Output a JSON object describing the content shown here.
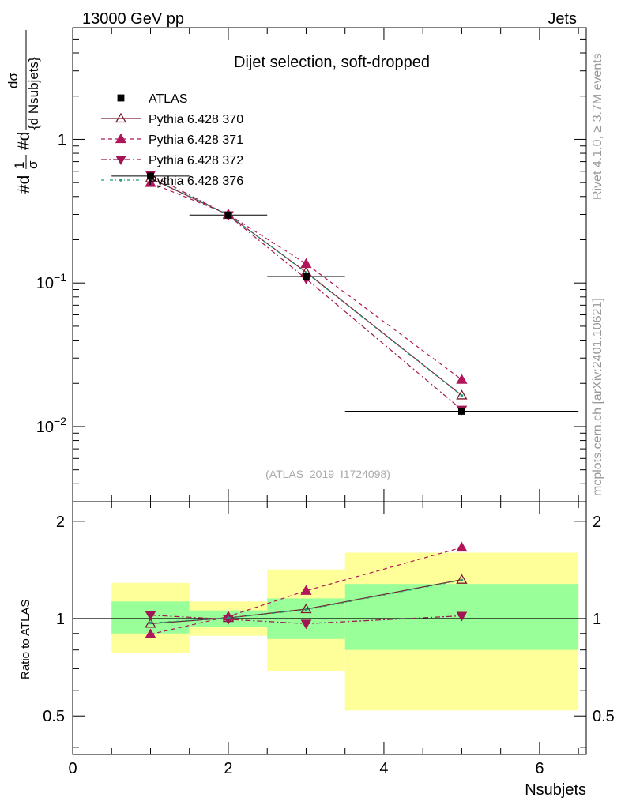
{
  "header": {
    "left": "13000 GeV pp",
    "right": "Jets"
  },
  "side_labels": {
    "rivet": "Rivet 4.1.0, ≥ 3.7M events",
    "mcplots": "mcplots.cern.ch [arXiv:2401.10621]"
  },
  "chart_data": [
    {
      "type": "line",
      "title": "Dijet selection, soft-dropped",
      "watermark": "(ATLAS_2019_I1724098)",
      "xlabel": "Nsubjets",
      "ylabel_parts": {
        "numerator_left": "#d",
        "sigma_bar": "1",
        "sigma": "σ",
        "d_label": "#d",
        "d_sigma": "dσ",
        "d_nsubjets": "{d Nsubjets}"
      },
      "xlim": [
        0,
        6.6
      ],
      "ylim": [
        0.003,
        6
      ],
      "yscale": "log",
      "y_ticks": [
        {
          "value": 1,
          "base": "1",
          "exp": ""
        },
        {
          "value": 0.1,
          "base": "10",
          "exp": "−1"
        },
        {
          "value": 0.01,
          "base": "10",
          "exp": "−2"
        }
      ],
      "x": [
        1,
        2,
        3,
        5
      ],
      "data": {
        "name": "ATLAS",
        "color": "#000000",
        "values": [
          0.555,
          0.297,
          0.111,
          0.0128
        ],
        "x_edges": [
          [
            0.5,
            1.5
          ],
          [
            1.5,
            2.5
          ],
          [
            2.5,
            3.5
          ],
          [
            3.5,
            6.5
          ]
        ]
      },
      "series": [
        {
          "name": "Pythia 6.428 370",
          "color": "#7b1c2e",
          "dash": "",
          "marker": "triangle-open",
          "values": [
            0.535,
            0.298,
            0.119,
            0.0165
          ]
        },
        {
          "name": "Pythia 6.428 371",
          "color": "#b0155a",
          "dash": "5,4",
          "marker": "triangle-up",
          "values": [
            0.498,
            0.301,
            0.136,
            0.0212
          ]
        },
        {
          "name": "Pythia 6.428 372",
          "color": "#a01552",
          "dash": "7,3,2,3",
          "marker": "triangle-down",
          "values": [
            0.568,
            0.296,
            0.107,
            0.0131
          ]
        },
        {
          "name": "Pythia 6.428 376",
          "color": "#1a9c7a",
          "dash": "4,3,1,3",
          "marker": "dot",
          "values": [
            0.54,
            0.299,
            0.118,
            0.0164
          ]
        }
      ]
    },
    {
      "type": "line",
      "ylabel": "Ratio to ATLAS",
      "xlabel": "Nsubjets",
      "xlim": [
        0,
        6.6
      ],
      "ylim": [
        0.38,
        2.3
      ],
      "yscale": "log",
      "y_ticks": [
        {
          "value": 0.5,
          "label": "0.5"
        },
        {
          "value": 1,
          "label": "1"
        },
        {
          "value": 2,
          "label": "2"
        }
      ],
      "x_ticks": [
        {
          "value": 0,
          "label": "0"
        },
        {
          "value": 2,
          "label": "2"
        },
        {
          "value": 4,
          "label": "4"
        },
        {
          "value": 6,
          "label": "6"
        }
      ],
      "bands": [
        {
          "x": [
            0.5,
            1.5
          ],
          "inner": [
            0.9,
            1.13
          ],
          "outer": [
            0.785,
            1.29
          ]
        },
        {
          "x": [
            1.5,
            2.5
          ],
          "inner": [
            0.945,
            1.06
          ],
          "outer": [
            0.885,
            1.13
          ]
        },
        {
          "x": [
            2.5,
            3.5
          ],
          "inner": [
            0.865,
            1.155
          ],
          "outer": [
            0.69,
            1.42
          ]
        },
        {
          "x": [
            3.5,
            6.5
          ],
          "inner": [
            0.8,
            1.28
          ],
          "outer": [
            0.52,
            1.6
          ]
        }
      ],
      "band_colors": {
        "inner": "#99ff99",
        "outer": "#ffff99"
      },
      "x": [
        1,
        2,
        3,
        5
      ],
      "series": [
        {
          "name": "Pythia 6.428 370",
          "color": "#7b1c2e",
          "dash": "",
          "marker": "triangle-open",
          "values": [
            0.965,
            1.005,
            1.07,
            1.32
          ]
        },
        {
          "name": "Pythia 6.428 371",
          "color": "#b0155a",
          "dash": "5,4",
          "marker": "triangle-up",
          "values": [
            0.895,
            1.015,
            1.22,
            1.66
          ]
        },
        {
          "name": "Pythia 6.428 372",
          "color": "#a01552",
          "dash": "7,3,2,3",
          "marker": "triangle-down",
          "values": [
            1.025,
            0.995,
            0.965,
            1.02
          ]
        },
        {
          "name": "Pythia 6.428 376",
          "color": "#1a9c7a",
          "dash": "4,3,1,3",
          "marker": "dot",
          "values": [
            0.97,
            1.005,
            1.065,
            1.315
          ]
        }
      ]
    }
  ]
}
